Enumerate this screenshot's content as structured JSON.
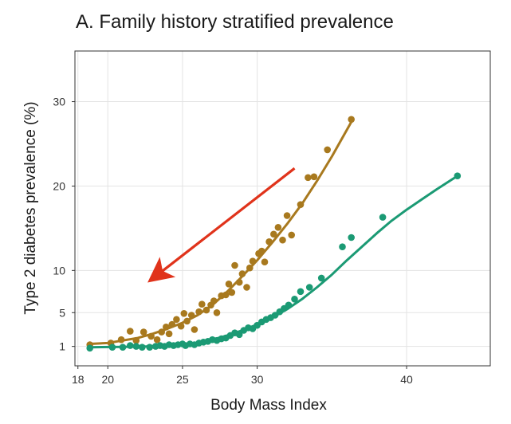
{
  "title": "A. Family history stratified prevalence",
  "chart_data": {
    "type": "scatter",
    "title": "A. Family history stratified prevalence",
    "xlabel": "Body Mass Index",
    "ylabel": "Type 2 diabetes prevalence (%)",
    "x_ticks": [
      18,
      20,
      25,
      30,
      40
    ],
    "y_ticks": [
      1,
      5,
      10,
      20,
      30
    ],
    "xlim": [
      17.8,
      45.6
    ],
    "ylim": [
      -1.3,
      36
    ],
    "grid": true,
    "series": [
      {
        "color": "#a8791e",
        "points": [
          [
            18.8,
            1.2
          ],
          [
            20.2,
            1.4
          ],
          [
            20.9,
            1.8
          ],
          [
            21.5,
            2.8
          ],
          [
            21.9,
            1.7
          ],
          [
            22.4,
            2.7
          ],
          [
            22.9,
            2.2
          ],
          [
            23.3,
            1.8
          ],
          [
            23.6,
            2.7
          ],
          [
            23.9,
            3.3
          ],
          [
            24.1,
            2.5
          ],
          [
            24.3,
            3.6
          ],
          [
            24.6,
            4.2
          ],
          [
            24.9,
            3.4
          ],
          [
            25.1,
            4.9
          ],
          [
            25.3,
            4.0
          ],
          [
            25.6,
            4.7
          ],
          [
            25.8,
            3.0
          ],
          [
            26.1,
            5.1
          ],
          [
            26.3,
            6.0
          ],
          [
            26.6,
            5.3
          ],
          [
            26.9,
            5.9
          ],
          [
            27.1,
            6.4
          ],
          [
            27.3,
            5.0
          ],
          [
            27.6,
            7.0
          ],
          [
            27.9,
            7.1
          ],
          [
            28.1,
            8.4
          ],
          [
            28.3,
            7.4
          ],
          [
            28.5,
            10.6
          ],
          [
            28.8,
            8.6
          ],
          [
            29.0,
            9.6
          ],
          [
            29.3,
            8.0
          ],
          [
            29.5,
            10.3
          ],
          [
            29.7,
            11.1
          ],
          [
            30.1,
            12.0
          ],
          [
            30.3,
            12.3
          ],
          [
            30.5,
            11.0
          ],
          [
            30.8,
            13.4
          ],
          [
            31.1,
            14.3
          ],
          [
            31.4,
            15.1
          ],
          [
            31.7,
            13.6
          ],
          [
            32.0,
            16.5
          ],
          [
            32.3,
            14.2
          ],
          [
            32.9,
            17.8
          ],
          [
            33.4,
            21.0
          ],
          [
            33.8,
            21.1
          ],
          [
            34.7,
            24.3
          ],
          [
            36.3,
            27.9
          ]
        ],
        "fit": [
          [
            18.8,
            1.3
          ],
          [
            20.0,
            1.4
          ],
          [
            21.0,
            1.7
          ],
          [
            22.0,
            2.0
          ],
          [
            23.0,
            2.5
          ],
          [
            24.0,
            3.1
          ],
          [
            25.0,
            3.8
          ],
          [
            26.0,
            4.7
          ],
          [
            27.0,
            5.9
          ],
          [
            28.0,
            7.5
          ],
          [
            29.0,
            9.3
          ],
          [
            30.0,
            11.2
          ],
          [
            31.0,
            13.3
          ],
          [
            32.0,
            15.5
          ],
          [
            33.0,
            17.9
          ],
          [
            34.0,
            20.6
          ],
          [
            35.0,
            23.5
          ],
          [
            36.3,
            27.6
          ]
        ]
      },
      {
        "color": "#1b9a74",
        "points": [
          [
            18.8,
            0.8
          ],
          [
            20.3,
            0.9
          ],
          [
            21.0,
            0.9
          ],
          [
            21.5,
            1.1
          ],
          [
            21.9,
            1.0
          ],
          [
            22.3,
            0.9
          ],
          [
            22.8,
            0.9
          ],
          [
            23.2,
            1.0
          ],
          [
            23.5,
            1.1
          ],
          [
            23.8,
            1.0
          ],
          [
            24.1,
            1.2
          ],
          [
            24.4,
            1.1
          ],
          [
            24.7,
            1.2
          ],
          [
            25.0,
            1.3
          ],
          [
            25.2,
            1.1
          ],
          [
            25.5,
            1.3
          ],
          [
            25.8,
            1.2
          ],
          [
            26.1,
            1.4
          ],
          [
            26.4,
            1.5
          ],
          [
            26.7,
            1.6
          ],
          [
            27.0,
            1.8
          ],
          [
            27.3,
            1.7
          ],
          [
            27.6,
            1.9
          ],
          [
            27.9,
            2.0
          ],
          [
            28.2,
            2.3
          ],
          [
            28.5,
            2.6
          ],
          [
            28.8,
            2.4
          ],
          [
            29.1,
            2.9
          ],
          [
            29.4,
            3.2
          ],
          [
            29.7,
            3.1
          ],
          [
            30.0,
            3.5
          ],
          [
            30.3,
            3.9
          ],
          [
            30.6,
            4.2
          ],
          [
            30.9,
            4.4
          ],
          [
            31.2,
            4.7
          ],
          [
            31.5,
            5.1
          ],
          [
            31.8,
            5.5
          ],
          [
            32.1,
            5.9
          ],
          [
            32.5,
            6.6
          ],
          [
            32.9,
            7.5
          ],
          [
            33.5,
            8.0
          ],
          [
            34.3,
            9.1
          ],
          [
            35.7,
            12.8
          ],
          [
            36.3,
            13.9
          ],
          [
            38.4,
            16.3
          ],
          [
            43.4,
            21.2
          ]
        ],
        "fit": [
          [
            18.8,
            0.9
          ],
          [
            21.0,
            0.95
          ],
          [
            23.0,
            1.0
          ],
          [
            24.5,
            1.1
          ],
          [
            26.0,
            1.4
          ],
          [
            27.0,
            1.8
          ],
          [
            28.0,
            2.3
          ],
          [
            29.0,
            2.9
          ],
          [
            30.0,
            3.6
          ],
          [
            31.0,
            4.4
          ],
          [
            32.0,
            5.4
          ],
          [
            33.0,
            6.6
          ],
          [
            34.0,
            8.0
          ],
          [
            35.0,
            9.5
          ],
          [
            36.0,
            11.2
          ],
          [
            37.0,
            12.8
          ],
          [
            38.0,
            14.4
          ],
          [
            39.0,
            15.9
          ],
          [
            40.0,
            17.2
          ],
          [
            41.0,
            18.4
          ],
          [
            42.0,
            19.6
          ],
          [
            43.4,
            21.2
          ]
        ]
      }
    ],
    "annotation_arrow": {
      "color": "#e0331b",
      "from": [
        32.5,
        22.1
      ],
      "to": [
        23.2,
        9.3
      ]
    }
  }
}
